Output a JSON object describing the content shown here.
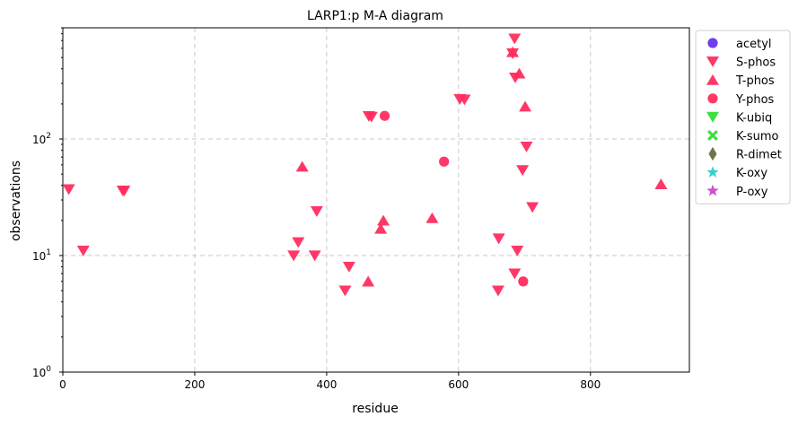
{
  "chart_data": {
    "type": "scatter",
    "title": "LARP1:p M-A diagram",
    "xlabel": "residue",
    "ylabel": "observations",
    "xlim": [
      0,
      950
    ],
    "ylim": [
      1,
      900
    ],
    "y_scale": "log",
    "grid": true,
    "legend_position": "outside-right",
    "x_ticks": [
      {
        "value": 0,
        "label": "0"
      },
      {
        "value": 200,
        "label": "200"
      },
      {
        "value": 400,
        "label": "400"
      },
      {
        "value": 600,
        "label": "600"
      },
      {
        "value": 800,
        "label": "800"
      }
    ],
    "y_ticks": [
      {
        "value": 1,
        "mantissa": "10",
        "exp": "0"
      },
      {
        "value": 10,
        "mantissa": "10",
        "exp": "1"
      },
      {
        "value": 100,
        "mantissa": "10",
        "exp": "2"
      }
    ],
    "series": [
      {
        "name": "acetyl",
        "marker": "circle",
        "color": "#6633ee",
        "points": []
      },
      {
        "name": "S-phos",
        "marker": "triangle-down",
        "color": "#ff2d5f",
        "points": [
          {
            "x": 9,
            "y": 37
          },
          {
            "x": 31,
            "y": 11
          },
          {
            "x": 91,
            "y": 36
          },
          {
            "x": 93,
            "y": 36
          },
          {
            "x": 350,
            "y": 10
          },
          {
            "x": 357,
            "y": 13
          },
          {
            "x": 382,
            "y": 10
          },
          {
            "x": 385,
            "y": 24
          },
          {
            "x": 428,
            "y": 5
          },
          {
            "x": 434,
            "y": 8
          },
          {
            "x": 464,
            "y": 157
          },
          {
            "x": 468,
            "y": 155
          },
          {
            "x": 602,
            "y": 220
          },
          {
            "x": 609,
            "y": 218
          },
          {
            "x": 660,
            "y": 5
          },
          {
            "x": 661,
            "y": 14
          },
          {
            "x": 682,
            "y": 543
          },
          {
            "x": 685,
            "y": 727
          },
          {
            "x": 685,
            "y": 7
          },
          {
            "x": 686,
            "y": 336
          },
          {
            "x": 689,
            "y": 11
          },
          {
            "x": 697,
            "y": 54
          },
          {
            "x": 703,
            "y": 86
          },
          {
            "x": 712,
            "y": 26
          }
        ]
      },
      {
        "name": "T-phos",
        "marker": "triangle-up",
        "color": "#ff2d5f",
        "points": [
          {
            "x": 363,
            "y": 58
          },
          {
            "x": 463,
            "y": 6
          },
          {
            "x": 482,
            "y": 17
          },
          {
            "x": 486,
            "y": 20
          },
          {
            "x": 560,
            "y": 21
          },
          {
            "x": 682,
            "y": 557
          },
          {
            "x": 692,
            "y": 365
          },
          {
            "x": 701,
            "y": 190
          },
          {
            "x": 907,
            "y": 41
          }
        ]
      },
      {
        "name": "Y-phos",
        "marker": "circle",
        "color": "#ff2d5f",
        "points": [
          {
            "x": 488,
            "y": 158
          },
          {
            "x": 578,
            "y": 64
          },
          {
            "x": 698,
            "y": 6
          }
        ]
      },
      {
        "name": "K-ubiq",
        "marker": "triangle-down",
        "color": "#33dd33",
        "points": []
      },
      {
        "name": "K-sumo",
        "marker": "x",
        "color": "#33dd33",
        "points": []
      },
      {
        "name": "R-dimet",
        "marker": "diamond",
        "color": "#6b6b3f",
        "points": []
      },
      {
        "name": "K-oxy",
        "marker": "star",
        "color": "#33cccc",
        "points": []
      },
      {
        "name": "P-oxy",
        "marker": "star",
        "color": "#cc44cc",
        "points": []
      }
    ]
  }
}
